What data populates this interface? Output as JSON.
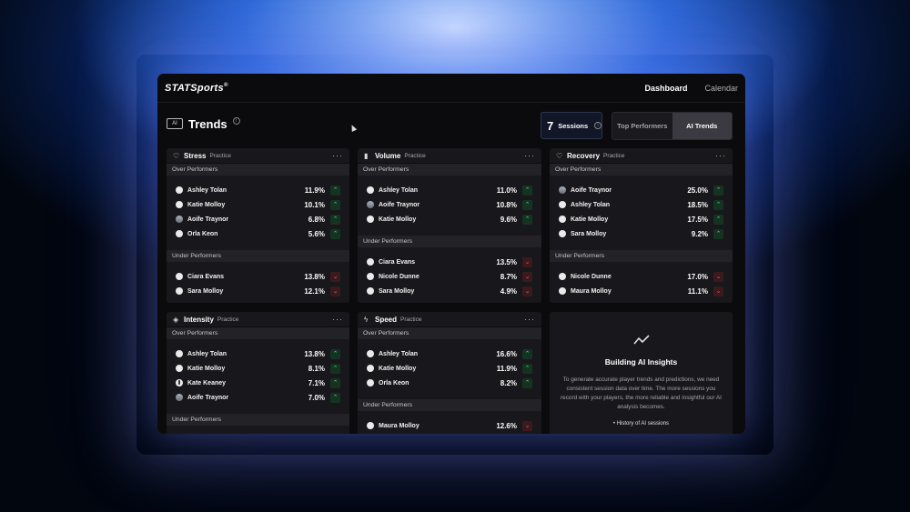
{
  "app": {
    "logo": "STATSports",
    "logo_mark": "®"
  },
  "nav": {
    "dashboard": "Dashboard",
    "calendar": "Calendar"
  },
  "header": {
    "ai_badge": "AI",
    "title": "Trends",
    "info": "i",
    "sessions_count": "7",
    "sessions_label": "Sessions",
    "toggle": {
      "top_performers": "Top Performers",
      "ai_trends": "AI Trends",
      "selected": "AI Trends"
    }
  },
  "labels": {
    "over": "Over Performers",
    "under": "Under Performers",
    "more": "···"
  },
  "cards": {
    "stress": {
      "title": "Stress",
      "tag": "Practice",
      "icon": "heart-icon",
      "over": [
        {
          "name": "Ashley Tolan",
          "value": "11.9%"
        },
        {
          "name": "Katie Molloy",
          "value": "10.1%"
        },
        {
          "name": "Aoife Traynor",
          "value": "6.8%"
        },
        {
          "name": "Orla Keon",
          "value": "5.6%"
        }
      ],
      "under": [
        {
          "name": "Ciara Evans",
          "value": "13.8%"
        },
        {
          "name": "Sara Molloy",
          "value": "12.1%"
        }
      ]
    },
    "volume": {
      "title": "Volume",
      "tag": "Practice",
      "icon": "bar-chart-icon",
      "over": [
        {
          "name": "Ashley Tolan",
          "value": "11.0%"
        },
        {
          "name": "Aoife Traynor",
          "value": "10.8%"
        },
        {
          "name": "Katie Molloy",
          "value": "9.6%"
        }
      ],
      "under": [
        {
          "name": "Ciara Evans",
          "value": "13.5%"
        },
        {
          "name": "Nicole Dunne",
          "value": "8.7%"
        },
        {
          "name": "Sara Molloy",
          "value": "4.9%"
        }
      ]
    },
    "recovery": {
      "title": "Recovery",
      "tag": "Practice",
      "icon": "heart-icon",
      "over": [
        {
          "name": "Aoife Traynor",
          "value": "25.0%"
        },
        {
          "name": "Ashley Tolan",
          "value": "18.5%"
        },
        {
          "name": "Katie Molloy",
          "value": "17.5%"
        },
        {
          "name": "Sara Molloy",
          "value": "9.2%"
        }
      ],
      "under": [
        {
          "name": "Nicole Dunne",
          "value": "17.0%"
        },
        {
          "name": "Maura Molloy",
          "value": "11.1%"
        }
      ]
    },
    "intensity": {
      "title": "Intensity",
      "tag": "Practice",
      "icon": "flame-icon",
      "over": [
        {
          "name": "Ashley Tolan",
          "value": "13.8%"
        },
        {
          "name": "Katie Molloy",
          "value": "8.1%"
        },
        {
          "name": "Kate Keaney",
          "value": "7.1%"
        },
        {
          "name": "Aoife Traynor",
          "value": "7.0%"
        }
      ]
    },
    "speed": {
      "title": "Speed",
      "tag": "Practice",
      "icon": "lightning-icon",
      "over": [
        {
          "name": "Ashley Tolan",
          "value": "16.6%"
        },
        {
          "name": "Katie Molloy",
          "value": "11.9%"
        },
        {
          "name": "Orla Keon",
          "value": "8.2%"
        }
      ],
      "under": [
        {
          "name": "Maura Molloy",
          "value": "12.6%"
        }
      ]
    }
  },
  "insight": {
    "heading": "Building AI Insights",
    "body": "To generate accurate player trends and predictions, we need consistent session data over time. The more sessions you record with your players, the more reliable and insightful our AI analysis becomes.",
    "bullet": "History of AI sessions"
  }
}
